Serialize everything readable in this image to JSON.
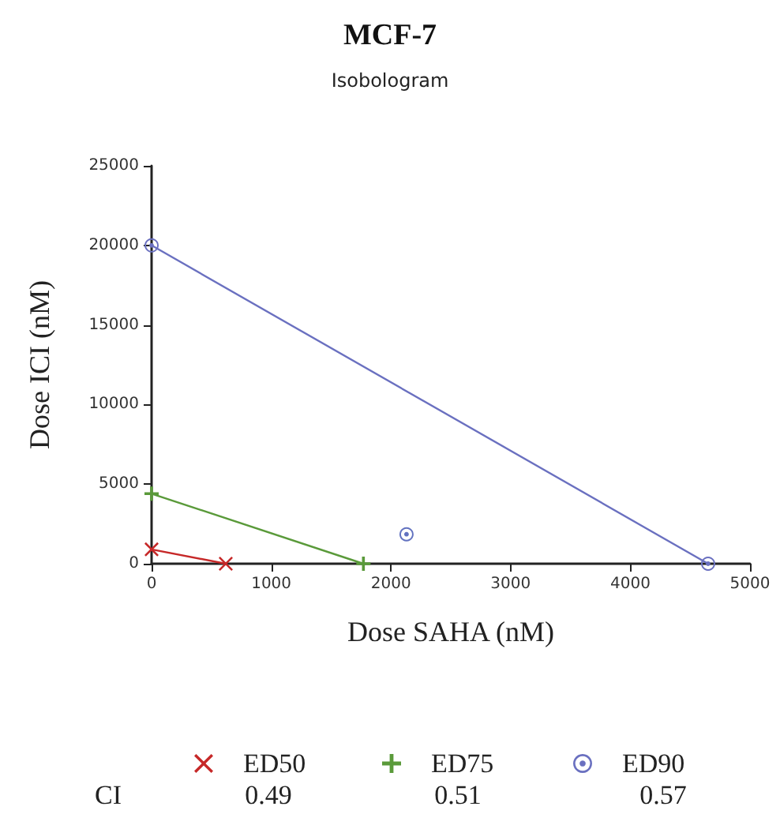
{
  "chart_data": {
    "type": "line",
    "title": "MCF-7",
    "subtitle": "Isobologram",
    "xlabel": "Dose SAHA (nM)",
    "ylabel": "Dose ICI (nM)",
    "xlim": [
      0,
      5000
    ],
    "xticks": [
      0,
      1000,
      2000,
      3000,
      4000,
      5000
    ],
    "ylim": [
      0,
      25000
    ],
    "yticks": [
      0,
      5000,
      10000,
      15000,
      20000,
      25000
    ],
    "legend": "bottom",
    "annotations": [
      "CI",
      "0.49",
      "0.51",
      "0.57"
    ],
    "series": [
      {
        "name": "ED50",
        "color": "#c62828",
        "x": [
          0,
          620
        ],
        "values": [
          900,
          0
        ],
        "marker": "cross"
      },
      {
        "name": "ED75",
        "color": "#5a9a3a",
        "x": [
          0,
          1770
        ],
        "values": [
          4400,
          0
        ],
        "marker": "plus"
      },
      {
        "name": "ED90",
        "color": "#6a70c0",
        "x": [
          0,
          4650
        ],
        "values": [
          20000,
          0
        ],
        "marker": "circle"
      },
      {
        "type": "scatter",
        "color": "#3b4fb0",
        "x": [
          2130
        ],
        "values": [
          1850
        ],
        "marker": "circle"
      }
    ]
  }
}
